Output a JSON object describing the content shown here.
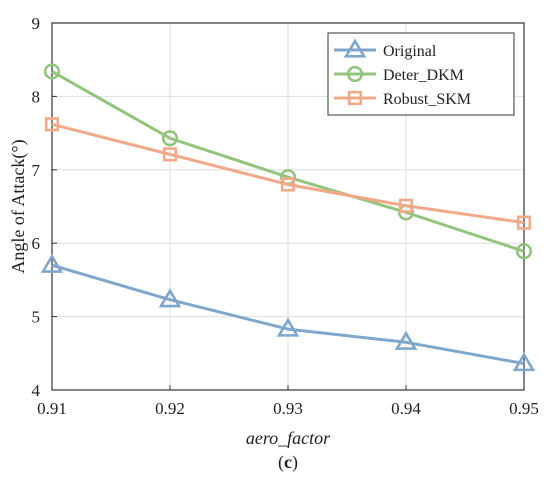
{
  "chart_data": {
    "type": "line",
    "title": "",
    "xlabel": "aero_factor",
    "ylabel": "Angle of Attack(°)",
    "caption_prefix": "(",
    "caption_letter": "c",
    "caption_suffix": ")",
    "x": [
      0.91,
      0.92,
      0.93,
      0.94,
      0.95
    ],
    "x_tick_labels": [
      "0.91",
      "0.92",
      "0.93",
      "0.94",
      "0.95"
    ],
    "y_ticks": [
      4,
      5,
      6,
      7,
      8,
      9
    ],
    "y_tick_labels": [
      "4",
      "5",
      "6",
      "7",
      "8",
      "9"
    ],
    "xlim": [
      0.91,
      0.95
    ],
    "ylim": [
      4,
      9
    ],
    "grid": true,
    "legend_position": "top-right",
    "series": [
      {
        "name": "Original",
        "values": [
          5.7,
          5.23,
          4.83,
          4.65,
          4.36
        ],
        "color": "#7fa7cc",
        "marker": "triangle"
      },
      {
        "name": "Deter_DKM",
        "values": [
          8.34,
          7.43,
          6.9,
          6.42,
          5.89
        ],
        "color": "#93c47d",
        "marker": "circle"
      },
      {
        "name": "Robust_SKM",
        "values": [
          7.62,
          7.21,
          6.8,
          6.51,
          6.28
        ],
        "color": "#f2a98a",
        "marker": "square"
      }
    ]
  }
}
